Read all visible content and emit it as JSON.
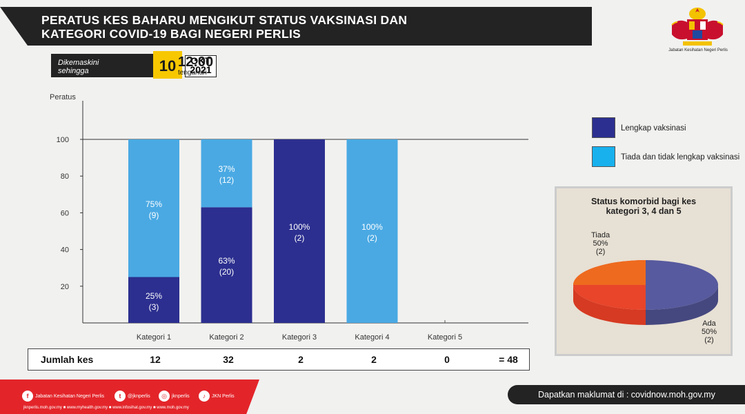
{
  "title": {
    "line1": "PERATUS KES BAHARU MENGIKUT STATUS VAKSINASI  DAN",
    "line2": "KATEGORI COVID-19 BAGI NEGERI PERLIS"
  },
  "logo_caption": "Jabatan Kesihatan Negeri Perlis",
  "update": {
    "label_line1": "Dikemaskini",
    "label_line2": "sehingga",
    "day": "10",
    "month": "OKT",
    "year": "2021",
    "time": "12:00",
    "time_label": "tengahari"
  },
  "chart_data": {
    "type": "bar",
    "stacked": true,
    "ylabel": "Peratus",
    "ylim": [
      0,
      100
    ],
    "yticks": [
      20,
      40,
      60,
      80,
      100
    ],
    "categories": [
      "Kategori 1",
      "Kategori 2",
      "Kategori 3",
      "Kategori 4",
      "Kategori 5"
    ],
    "series": [
      {
        "name": "Lengkap vaksinasi",
        "color": "#2c2f8f",
        "values": [
          25,
          63,
          100,
          0,
          0
        ],
        "labels": [
          "25%",
          "63%",
          "100%",
          "",
          ""
        ],
        "counts": [
          "(3)",
          "(20)",
          "(2)",
          "",
          ""
        ]
      },
      {
        "name": "Tiada dan tidak lengkap vaksinasi",
        "color": "#4aa9e3",
        "values": [
          75,
          37,
          0,
          100,
          0
        ],
        "labels": [
          "75%",
          "37%",
          "",
          "100%",
          ""
        ],
        "counts": [
          "(9)",
          "(12)",
          "",
          "(2)",
          ""
        ]
      }
    ],
    "totals": {
      "label": "Jumlah kes",
      "values": [
        "12",
        "32",
        "2",
        "2",
        "0"
      ],
      "grand_total": "= 48"
    }
  },
  "legend": {
    "items": [
      {
        "label": "Lengkap vaksinasi",
        "color": "#2c2f8f"
      },
      {
        "label": "Tiada dan tidak lengkap vaksinasi",
        "color": "#18b1ee"
      }
    ]
  },
  "pie_data": {
    "type": "pie",
    "title_line1": "Status komorbid bagi kes",
    "title_line2": "kategori 3, 4 dan 5",
    "slices": [
      {
        "name": "Tiada",
        "percent": "50%",
        "count": "(2)",
        "value": 50,
        "color": "#e8452a"
      },
      {
        "name": "Ada",
        "percent": "50%",
        "count": "(2)",
        "value": 50,
        "color": "#575a9e"
      }
    ]
  },
  "footer": {
    "social": [
      {
        "icon": "facebook-icon",
        "label": "Jabatan Kesihatan Negeri Perlis"
      },
      {
        "icon": "twitter-icon",
        "label": "@jknperlis"
      },
      {
        "icon": "instagram-icon",
        "label": "jknperlis"
      },
      {
        "icon": "tiktok-icon",
        "label": "JKN Perlis"
      }
    ],
    "links": "jknperlis.moh.gov.my ■ www.myhealth.gov.my ■ www.infosihat.gov.my ■ www.moh.gov.my",
    "right_text": "Dapatkan maklumat di : covidnow.moh.gov.my"
  }
}
